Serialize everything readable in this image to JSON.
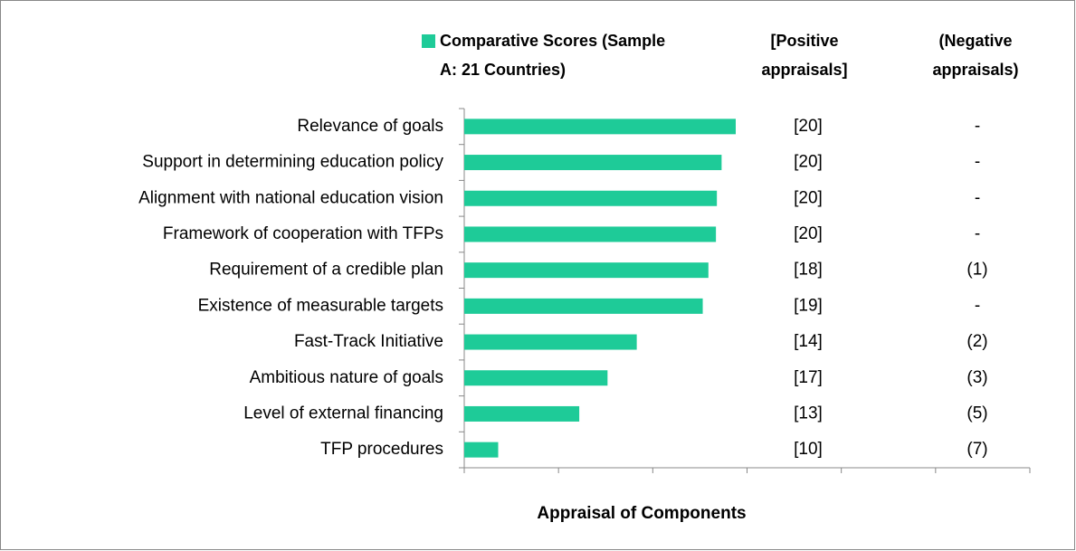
{
  "chart_data": {
    "type": "barh",
    "categories": [
      "Relevance of goals",
      "Support in determining education policy",
      "Alignment with national education vision",
      "Framework of cooperation with TFPs",
      "Requirement of a credible plan",
      "Existence of measurable targets",
      "Fast-Track Initiative",
      "Ambitious nature of goals",
      "Level of external financing",
      "TFP procedures"
    ],
    "series": [
      {
        "name": "Comparative Scores (Sample A: 21 Countries)",
        "color": "#1ecb98",
        "values": [
          2.88,
          2.73,
          2.68,
          2.67,
          2.59,
          2.53,
          1.83,
          1.52,
          1.22,
          0.36
        ]
      }
    ],
    "xlim": [
      0,
      6
    ],
    "xticks": [
      0,
      1,
      2,
      3,
      4,
      5,
      6
    ],
    "x_label": "Appraisal of Components",
    "columns": [
      {
        "header": "[Positive appraisals]",
        "values": [
          "[20]",
          "[20]",
          "[20]",
          "[20]",
          "[18]",
          "[19]",
          "[14]",
          "[17]",
          "[13]",
          "[10]"
        ]
      },
      {
        "header": "(Negative appraisals)",
        "values": [
          "-",
          "-",
          "-",
          "-",
          "(1)",
          "-",
          "(2)",
          "(3)",
          "(5)",
          "(7)"
        ]
      }
    ],
    "legend": "top"
  }
}
